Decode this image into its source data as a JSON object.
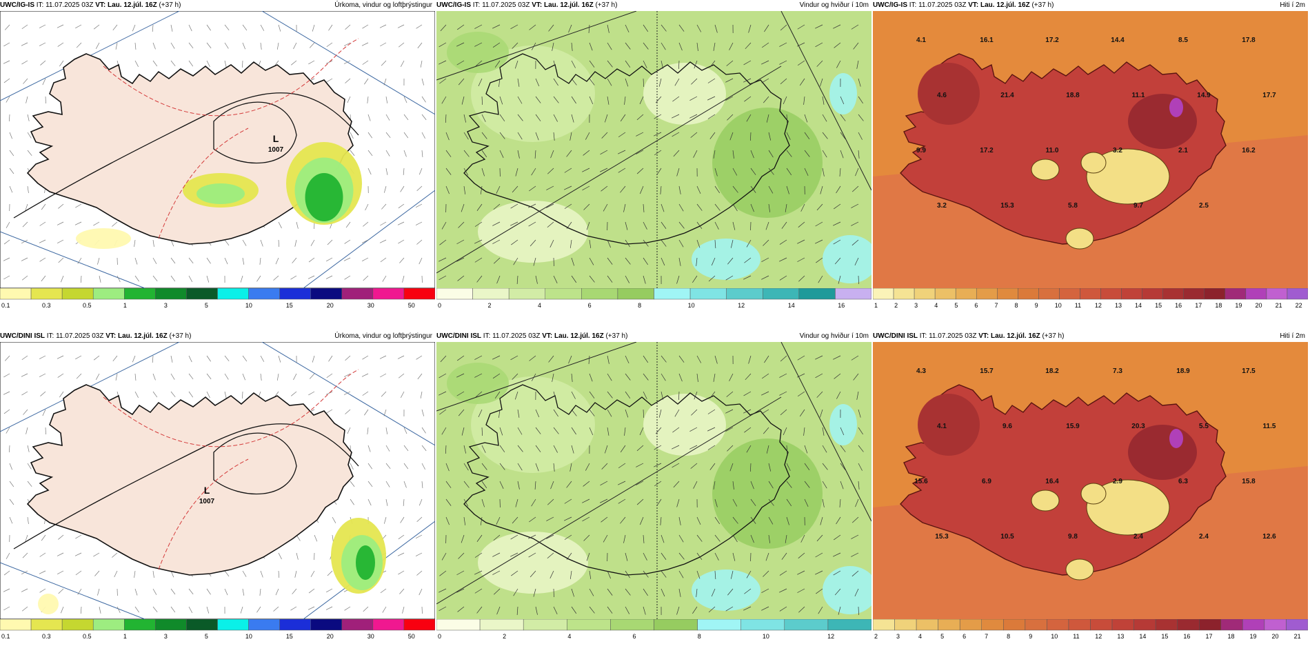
{
  "colors": {
    "land": "#f8e5da",
    "coast": "#111",
    "isobar": "#111",
    "isotherm": "#d43a3a",
    "sea": "#ffffff",
    "gridline": "#3a66a0",
    "windbg": "#bfe08a",
    "heat": "#c2403a",
    "heatbg": "#e48a3c",
    "cold": "#f3df86"
  },
  "panels": [
    {
      "id": "p1",
      "type": "precip",
      "model": "UWC/IG-IS",
      "it": "IT: 11.07.2025 03Z",
      "vt_label": "VT: Lau. 12.júl. 16Z",
      "lead": "(+37 h)",
      "title": "Úrkoma, vindur og loftþrýstingur",
      "lows": [
        {
          "label": "L",
          "value": "1007"
        }
      ],
      "colorbar": {
        "colors": [
          "#fff9b0",
          "#e5e650",
          "#c5d730",
          "#9ded80",
          "#22b432",
          "#108a2a",
          "#0a5a28",
          "#0af0e8",
          "#3a7bf0",
          "#1b2ed8",
          "#0a0a80",
          "#a0207a",
          "#f01890",
          "#f80010"
        ],
        "labels": [
          "0.1",
          "0.3",
          "0.5",
          "1",
          "3",
          "5",
          "10",
          "15",
          "20",
          "30",
          "50"
        ]
      }
    },
    {
      "id": "p2",
      "type": "wind",
      "model": "UWC/IG-IS",
      "it": "IT: 11.07.2025 03Z",
      "vt_label": "VT: Lau. 12.júl. 16Z",
      "lead": "(+37 h)",
      "title": "Vindur og hviður í 10m",
      "colorbar": {
        "colors": [
          "#fbfde6",
          "#eaf6c8",
          "#d2eca6",
          "#bde38a",
          "#a8d873",
          "#96cc60",
          "#a0f5f5",
          "#7fe4e4",
          "#5ccccc",
          "#3db6b6",
          "#1f9a9a",
          "#c8b0f0"
        ],
        "labels": [
          "0",
          "2",
          "4",
          "6",
          "8",
          "10",
          "12",
          "14",
          "16"
        ]
      }
    },
    {
      "id": "p3",
      "type": "temp",
      "model": "UWC/IG-IS",
      "it": "IT: 11.07.2025 03Z",
      "vt_label": "VT: Lau. 12.júl. 16Z",
      "lead": "(+37 h)",
      "title": "Hiti í 2m",
      "labels": [
        "4.1",
        "16.1",
        "17.2",
        "14.4",
        "8.5",
        "17.8",
        "4.6",
        "21.4",
        "18.8",
        "11.1",
        "14.9",
        "17.7",
        "9.9",
        "17.2",
        "11.0",
        "3.2",
        "2.1",
        "16.2",
        "3.2",
        "15.3",
        "5.8",
        "9.7",
        "2.5"
      ],
      "colorbar": {
        "colors": [
          "#fbf3b8",
          "#f5e394",
          "#f0d27a",
          "#ecc066",
          "#e8ae55",
          "#e49c48",
          "#e08a3e",
          "#db7a3a",
          "#d8703e",
          "#d4643e",
          "#cf583c",
          "#c84c3a",
          "#c04238",
          "#b63a36",
          "#a83232",
          "#9a2a30",
          "#8c222c",
          "#a02a78",
          "#b040b8",
          "#c060d0",
          "#a05cd0"
        ],
        "labels": [
          "1",
          "2",
          "3",
          "4",
          "5",
          "6",
          "7",
          "8",
          "9",
          "10",
          "11",
          "12",
          "13",
          "14",
          "15",
          "16",
          "17",
          "18",
          "19",
          "20",
          "21",
          "22"
        ]
      }
    },
    {
      "id": "p4",
      "type": "precip",
      "model": "UWC/DINI ISL",
      "it": "IT: 11.07.2025 03Z",
      "vt_label": "VT: Lau. 12.júl. 16Z",
      "lead": "(+37 h)",
      "title": "Úrkoma, vindur og loftþrýstingur",
      "lows": [
        {
          "label": "L",
          "value": "1007"
        }
      ],
      "colorbar": {
        "colors": [
          "#fff9b0",
          "#e5e650",
          "#c5d730",
          "#9ded80",
          "#22b432",
          "#108a2a",
          "#0a5a28",
          "#0af0e8",
          "#3a7bf0",
          "#1b2ed8",
          "#0a0a80",
          "#a0207a",
          "#f01890",
          "#f80010"
        ],
        "labels": [
          "0.1",
          "0.3",
          "0.5",
          "1",
          "3",
          "5",
          "10",
          "15",
          "20",
          "30",
          "50"
        ]
      }
    },
    {
      "id": "p5",
      "type": "wind",
      "model": "UWC/DINI ISL",
      "it": "IT: 11.07.2025 03Z",
      "vt_label": "VT: Lau. 12.júl. 16Z",
      "lead": "(+37 h)",
      "title": "Vindur og hviður í 10m",
      "colorbar": {
        "colors": [
          "#fbfde6",
          "#eaf6c8",
          "#d2eca6",
          "#bde38a",
          "#a8d873",
          "#96cc60",
          "#a0f5f5",
          "#7fe4e4",
          "#5ccccc",
          "#3db6b6"
        ],
        "labels": [
          "0",
          "2",
          "4",
          "6",
          "8",
          "10",
          "12"
        ]
      }
    },
    {
      "id": "p6",
      "type": "temp",
      "model": "UWC/DINI ISL",
      "it": "IT: 11.07.2025 03Z",
      "vt_label": "VT: Lau. 12.júl. 16Z",
      "lead": "(+37 h)",
      "title": "Hiti í 2m",
      "labels": [
        "4.3",
        "15.7",
        "18.2",
        "7.3",
        "18.9",
        "17.5",
        "4.1",
        "9.6",
        "15.9",
        "20.3",
        "5.5",
        "11.5",
        "15.6",
        "6.9",
        "16.4",
        "2.9",
        "6.3",
        "15.8",
        "15.3",
        "10.5",
        "9.8",
        "2.4",
        "2.4",
        "12.6"
      ],
      "colorbar": {
        "colors": [
          "#f5e394",
          "#f0d27a",
          "#ecc066",
          "#e8ae55",
          "#e49c48",
          "#e08a3e",
          "#db7a3a",
          "#d8703e",
          "#d4643e",
          "#cf583c",
          "#c84c3a",
          "#c04238",
          "#b63a36",
          "#a83232",
          "#9a2a30",
          "#8c222c",
          "#a02a78",
          "#b040b8",
          "#c060d0",
          "#a05cd0"
        ],
        "labels": [
          "2",
          "3",
          "4",
          "5",
          "6",
          "7",
          "8",
          "9",
          "10",
          "11",
          "12",
          "13",
          "14",
          "15",
          "16",
          "17",
          "18",
          "19",
          "20",
          "21"
        ]
      }
    }
  ]
}
